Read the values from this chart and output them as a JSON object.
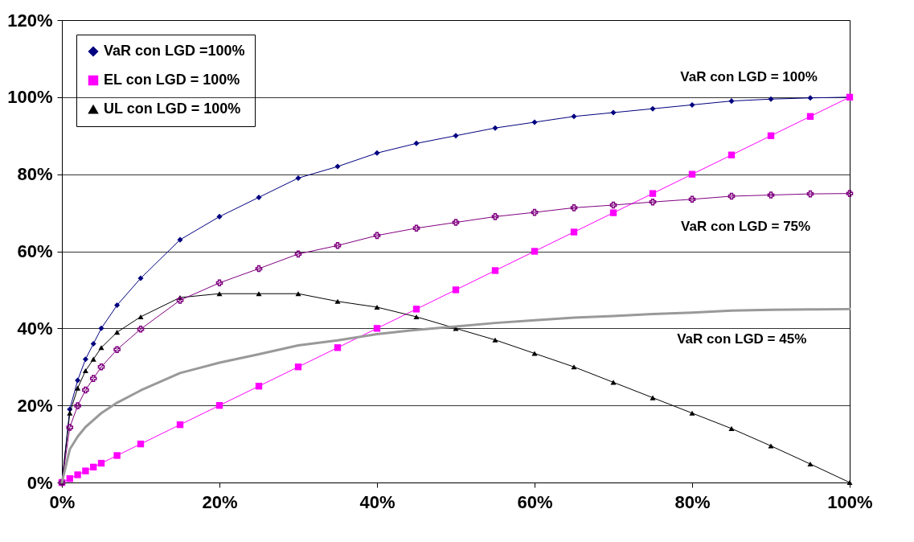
{
  "chart_data": {
    "type": "line",
    "x": [
      0,
      1,
      2,
      3,
      4,
      5,
      7,
      10,
      15,
      20,
      25,
      30,
      35,
      40,
      45,
      50,
      55,
      60,
      65,
      70,
      75,
      80,
      85,
      90,
      95,
      100
    ],
    "xlim": [
      0,
      100
    ],
    "ylim": [
      0,
      120
    ],
    "xticks": [
      {
        "value": 0,
        "label": "0%"
      },
      {
        "value": 20,
        "label": "20%"
      },
      {
        "value": 40,
        "label": "40%"
      },
      {
        "value": 60,
        "label": "60%"
      },
      {
        "value": 80,
        "label": "80%"
      },
      {
        "value": 100,
        "label": "100%"
      }
    ],
    "yticks": [
      {
        "value": 0,
        "label": "0%"
      },
      {
        "value": 20,
        "label": "20%"
      },
      {
        "value": 40,
        "label": "40%"
      },
      {
        "value": 60,
        "label": "60%"
      },
      {
        "value": 80,
        "label": "80%"
      },
      {
        "value": 100,
        "label": "100%"
      },
      {
        "value": 120,
        "label": "120%"
      }
    ],
    "grid": "y",
    "legend": "top left",
    "line_style": "solid",
    "series": [
      {
        "name": "VaR con LGD =100%",
        "color": "#000080",
        "marker": "diamond",
        "values": [
          0,
          19,
          26.5,
          32,
          36,
          40,
          46,
          53,
          63,
          69,
          74,
          79,
          82,
          85.5,
          88,
          90,
          92,
          93.5,
          95,
          96,
          97,
          98,
          99,
          99.5,
          99.8,
          100
        ]
      },
      {
        "name": "EL con LGD = 100%",
        "color": "#ff00ff",
        "marker": "square",
        "values": [
          0,
          1,
          2,
          3,
          4,
          5,
          7,
          10,
          15,
          20,
          25,
          30,
          35,
          40,
          45,
          50,
          55,
          60,
          65,
          70,
          75,
          80,
          85,
          90,
          95,
          100
        ]
      },
      {
        "name": "UL con LGD = 100%",
        "color": "#000000",
        "marker": "triangle",
        "values": [
          0,
          18,
          24.5,
          29,
          32,
          35,
          39,
          43,
          48,
          49,
          49,
          49,
          47,
          45.5,
          43,
          40,
          37,
          33.5,
          30,
          26,
          22,
          18,
          14,
          9.5,
          4.8,
          0
        ]
      },
      {
        "color": "#800080",
        "marker": "cross",
        "values": [
          0,
          14.3,
          19.9,
          24,
          27,
          30,
          34.5,
          39.8,
          47.3,
          51.8,
          55.5,
          59.3,
          61.5,
          64.1,
          66,
          67.5,
          69,
          70.1,
          71.3,
          72,
          72.8,
          73.5,
          74.3,
          74.6,
          74.9,
          75
        ]
      },
      {
        "color": "#999999",
        "marker": "none",
        "values": [
          0,
          8.6,
          11.9,
          14.4,
          16.2,
          18,
          20.7,
          23.9,
          28.4,
          31.1,
          33.3,
          35.6,
          36.9,
          38.5,
          39.6,
          40.5,
          41.4,
          42.1,
          42.8,
          43.2,
          43.7,
          44.1,
          44.6,
          44.8,
          44.9,
          45
        ]
      }
    ],
    "annotations": [
      "VaR con LGD = 100%",
      "VaR con LGD = 75%",
      "VaR con LGD = 45%"
    ]
  }
}
